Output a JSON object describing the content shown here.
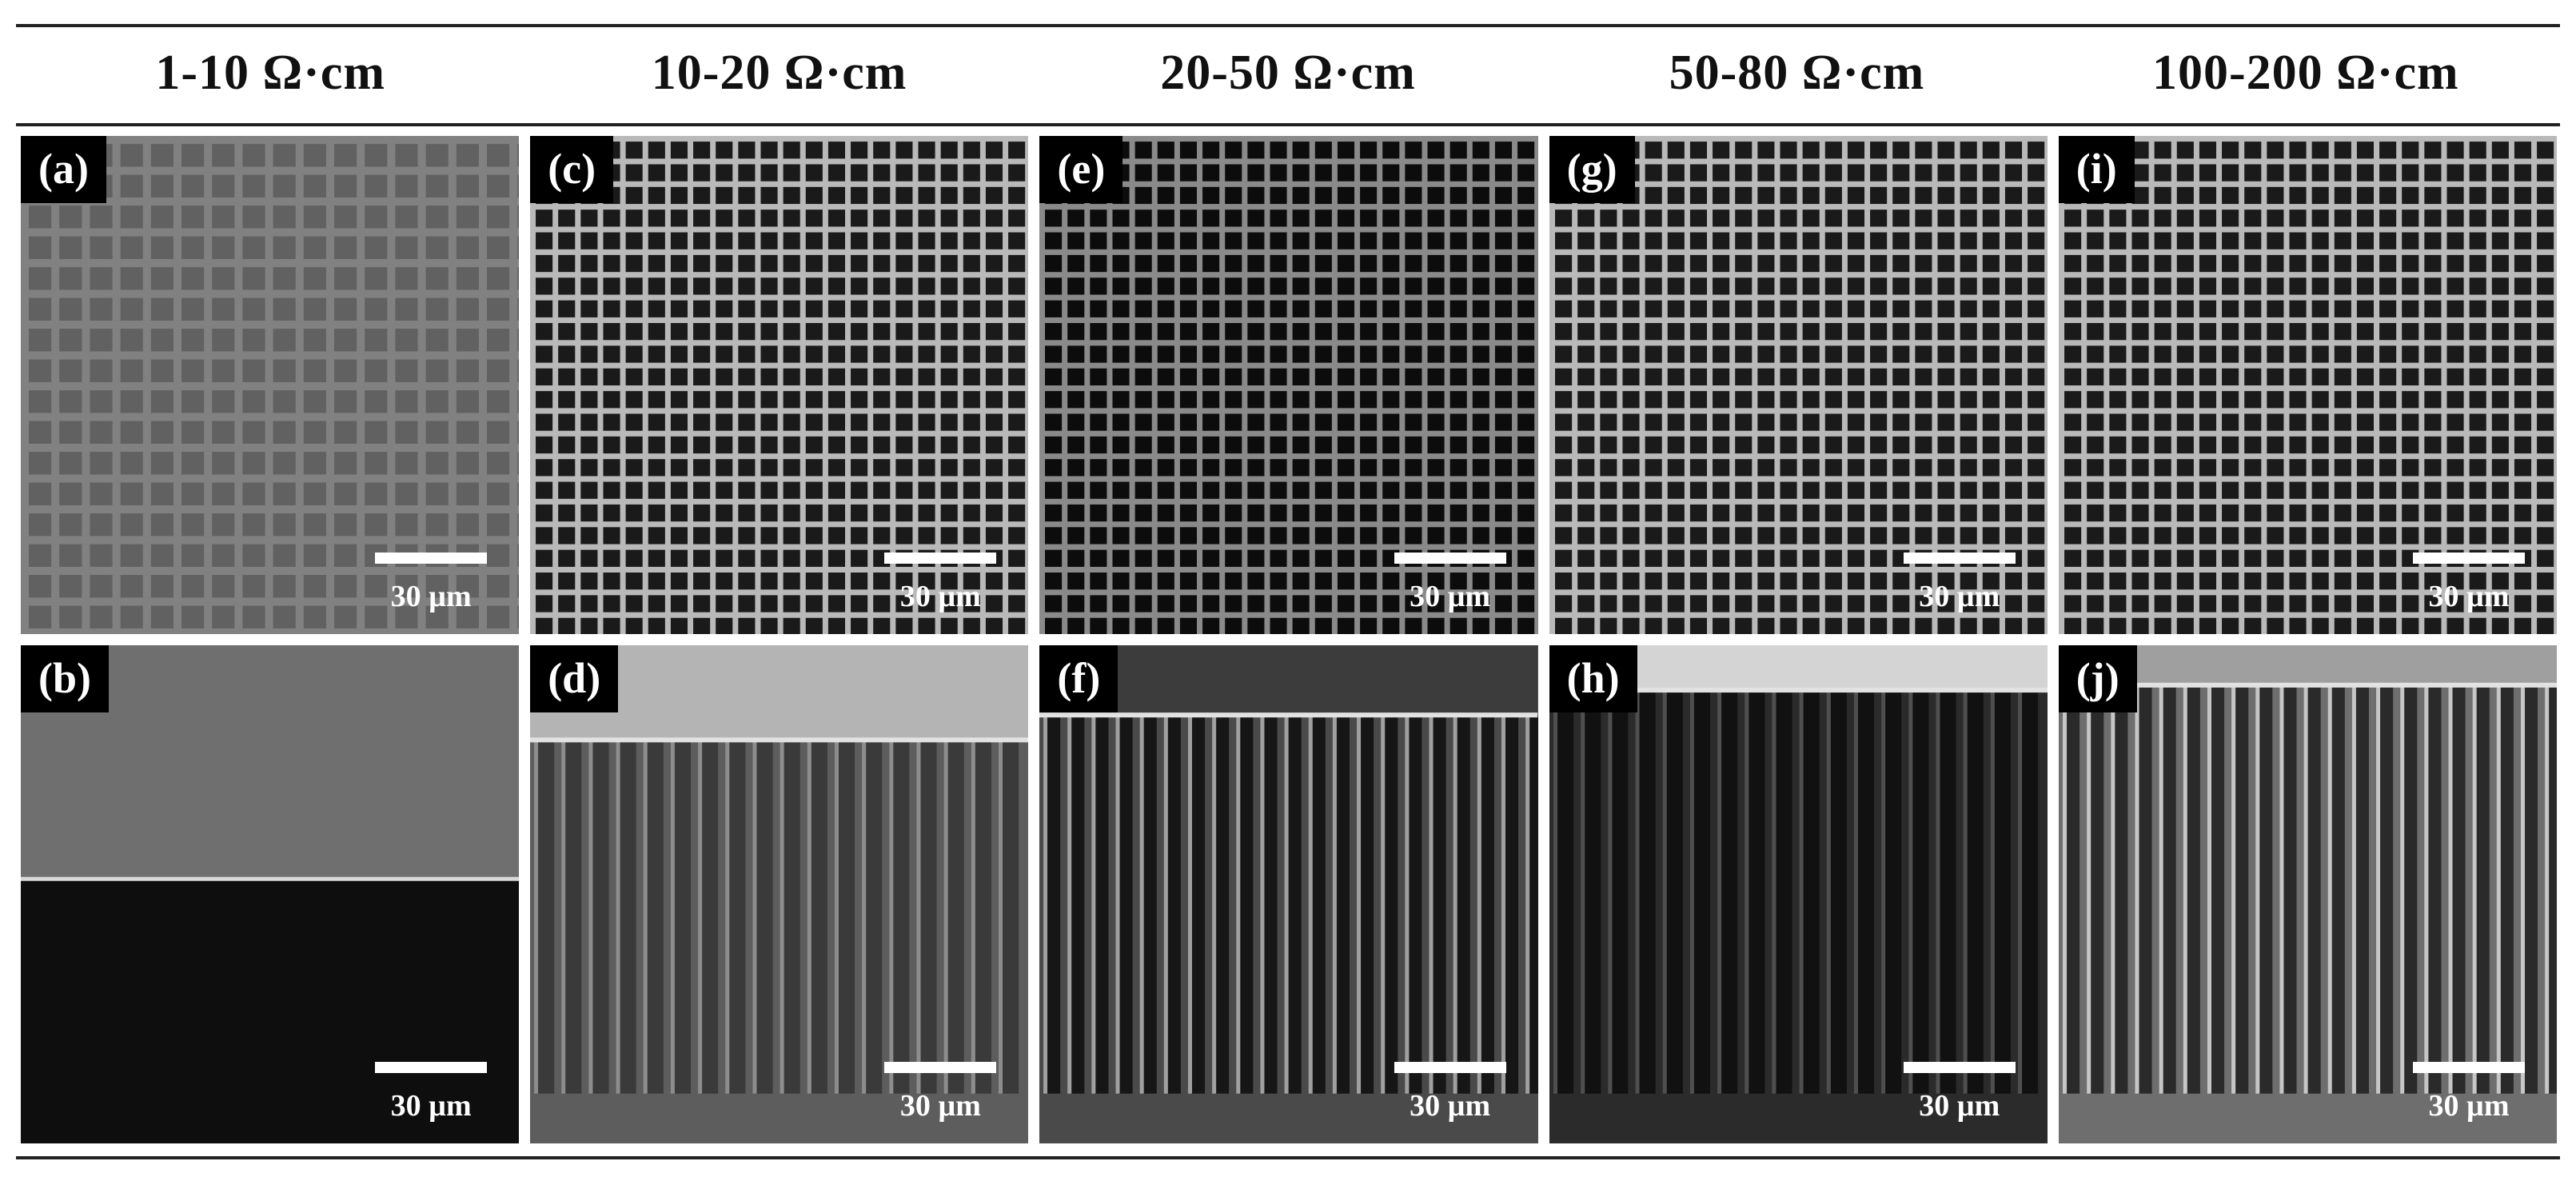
{
  "columns": [
    {
      "heading": "1-10 Ω·cm"
    },
    {
      "heading": "10-20 Ω·cm"
    },
    {
      "heading": "20-50 Ω·cm"
    },
    {
      "heading": "50-80 Ω·cm"
    },
    {
      "heading": "100-200 Ω·cm"
    }
  ],
  "panels": {
    "a": {
      "label": "(a)",
      "scale": "30 µm",
      "view": "top",
      "style": "textured"
    },
    "c": {
      "label": "(c)",
      "scale": "30 µm",
      "view": "top",
      "style": "grid-light"
    },
    "e": {
      "label": "(e)",
      "scale": "30 µm",
      "view": "top",
      "style": "grid-dark"
    },
    "g": {
      "label": "(g)",
      "scale": "30 µm",
      "view": "top",
      "style": "grid-light"
    },
    "i": {
      "label": "(i)",
      "scale": "30 µm",
      "view": "top",
      "style": "grid-light"
    },
    "b": {
      "label": "(b)",
      "scale": "30 µm",
      "view": "cross-section",
      "style": "flat"
    },
    "d": {
      "label": "(d)",
      "scale": "30 µm",
      "view": "cross-section",
      "style": "pillars"
    },
    "f": {
      "label": "(f)",
      "scale": "30 µm",
      "view": "cross-section",
      "style": "pillars-rough"
    },
    "h": {
      "label": "(h)",
      "scale": "30 µm",
      "view": "cross-section",
      "style": "pillars-dark"
    },
    "j": {
      "label": "(j)",
      "scale": "30 µm",
      "view": "cross-section",
      "style": "pillars-bright"
    }
  },
  "colors": {
    "rule": "#222222",
    "label_bg": "#000000",
    "label_fg": "#ffffff",
    "scalebar": "#ffffff"
  }
}
